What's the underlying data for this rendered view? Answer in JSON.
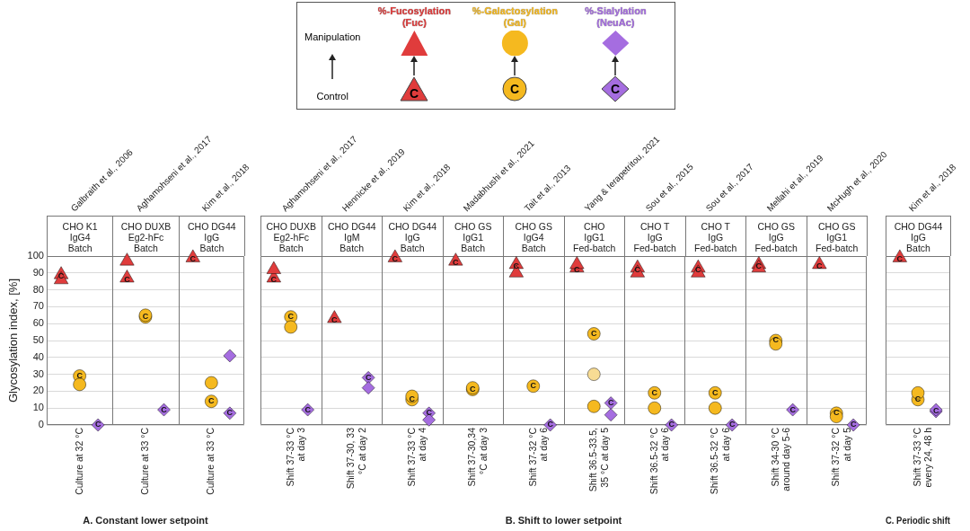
{
  "chart_data": [
    {
      "type": "scatter",
      "xlabel": "A. Constant lower setpoint",
      "ylabel": "Glycosylation index, [%]",
      "categories": [
        "Culture at 32 °C",
        "Culture at 33 °C",
        "Culture at 33 °C"
      ],
      "ylim": [
        0,
        100
      ],
      "yticks": [
        0,
        10,
        20,
        30,
        40,
        50,
        60,
        70,
        80,
        90,
        100
      ],
      "grid": "y",
      "annotations": [
        "Galbraith et al., 2006",
        "Aghamohseni et al., 2017",
        "Kim et al., 2018",
        "CHO K1\nIgG4\nBatch",
        "CHO DUXB\nEg2-hFc\nBatch",
        "CHO DG44\nIgG\nBatch"
      ],
      "series": [
        {
          "color": "#e03c3c",
          "marker": "triangle",
          "values": [
            86,
            97,
            null
          ]
        },
        {
          "color": "#e03c3c",
          "marker": "triangle",
          "values": [
            89,
            87,
            99
          ],
          "value_labels": [
            "C",
            "C",
            "C"
          ]
        },
        {
          "color": "#f5b91f",
          "marker": "circle",
          "values": [
            24,
            65,
            25
          ]
        },
        {
          "color": "#f5b91f",
          "marker": "circle",
          "values": [
            29,
            64,
            14
          ],
          "value_labels": [
            "C",
            "C",
            "C"
          ]
        },
        {
          "color": "#a56de0",
          "marker": "diamond",
          "values": [
            null,
            null,
            41
          ]
        },
        {
          "color": "#a56de0",
          "marker": "diamond",
          "values": [
            0,
            9,
            7
          ],
          "value_labels": [
            "C",
            "C",
            "C"
          ]
        }
      ]
    },
    {
      "type": "scatter",
      "xlabel": "B. Shift to lower setpoint",
      "categories": [
        "Shift 37-33 °C at day 3",
        "Shift 37-30, 33 °C at day 2",
        "Shift 37-33 °C at day 4",
        "Shift 37-30,34 °C at day 3",
        "Shift 37-32 °C at day 6",
        "Shift 36.5-33.5, 35 °C at day 5",
        "Shift 36.5-32 °C at day 6",
        "Shift 36.5-32 °C at day 6",
        "Shift 34-30 °C around day 5-6",
        "Shift 37-32 °C at day 5"
      ],
      "ylim": [
        0,
        100
      ],
      "yticks": [
        0,
        10,
        20,
        30,
        40,
        50,
        60,
        70,
        80,
        90,
        100
      ],
      "grid": "y",
      "tick_labels": "x",
      "legend": "top",
      "annotations": [
        "Aghamohseni et al., 2017",
        "Hennicke et al., 2019",
        "Kim et al., 2018",
        "Madabhushi et al., 2021",
        "Tait et al., 2013",
        "Yang & Ierapetritou, 2021",
        "Sou et al., 2015",
        "Sou et al., 2017",
        "Mellahi et al., 2019",
        "McHugh et al., 2020",
        "CHO DUXB\nEg2-hFc\nBatch",
        "CHO DG44\nIgM\nBatch",
        "CHO DG44\nIgG\nBatch",
        "CHO GS\nIgG1\nBatch",
        "CHO GS\nIgG4\nBatch",
        "CHO\nIgG1\nFed-batch",
        "CHO T\nIgG\nFed-batch",
        "CHO T\nIgG\nFed-batch",
        "CHO GS\nIgG\nFed-batch",
        "CHO GS\nIgG1\nFed-batch",
        "Manipulation",
        "Control"
      ],
      "series": [
        {
          "name": "%-Fucosylation (Fuc)",
          "color": "#e03c3c",
          "marker": "triangle",
          "values": [
            92,
            null,
            null,
            null,
            90,
            95,
            90,
            90,
            93,
            null
          ]
        },
        {
          "color": "#e03c3c",
          "marker": "triangle",
          "values": [
            87,
            63,
            99,
            97,
            95,
            93,
            93,
            93,
            95,
            95
          ],
          "value_labels": [
            "C",
            "C",
            "C",
            "C",
            "C",
            "C",
            "C",
            "C",
            "C",
            "C"
          ]
        },
        {
          "name": "%-Galactosylation (Gal)",
          "color": "#f5b91f",
          "marker": "circle",
          "values": [
            58,
            null,
            17,
            22,
            null,
            11,
            10,
            10,
            48,
            5
          ]
        },
        {
          "color": "#f5b91f",
          "marker": "circle",
          "values": [
            64,
            null,
            15,
            21,
            23,
            54,
            19,
            19,
            50,
            7
          ],
          "value_labels": [
            "C",
            null,
            "C",
            "C",
            "C",
            "C",
            "C",
            "C",
            "C",
            "C"
          ]
        },
        {
          "color": "#f8dc94",
          "marker": "circle",
          "values": [
            null,
            null,
            null,
            null,
            null,
            30,
            null,
            null,
            null,
            null
          ]
        },
        {
          "name": "%-Sialylation (NeuAc)",
          "color": "#a56de0",
          "marker": "diamond",
          "values": [
            null,
            22,
            3,
            null,
            null,
            6,
            null,
            null,
            null,
            null
          ]
        },
        {
          "color": "#a56de0",
          "marker": "diamond",
          "values": [
            9,
            28,
            7,
            null,
            0,
            13,
            0,
            0,
            9,
            0
          ],
          "value_labels": [
            "C",
            "C",
            "C",
            null,
            "C",
            "C",
            "C",
            "C",
            "C",
            "C"
          ]
        }
      ]
    },
    {
      "type": "scatter",
      "xlabel": "C. Periodic shift",
      "categories": [
        "Shift 37-33 °C every 24, 48 h"
      ],
      "ylim": [
        0,
        100
      ],
      "yticks": [
        0,
        10,
        20,
        30,
        40,
        50,
        60,
        70,
        80,
        90,
        100
      ],
      "grid": "y",
      "tick_labels": "x",
      "annotations": [
        "Kim et al., 2018",
        "CHO DG44\nIgG\nBatch"
      ],
      "series": [
        {
          "color": "#e03c3c",
          "marker": "triangle",
          "values": [
            99
          ],
          "value_labels": [
            "C"
          ]
        },
        {
          "color": "#f5b91f",
          "marker": "circle",
          "values": [
            19
          ]
        },
        {
          "color": "#f5b91f",
          "marker": "circle",
          "values": [
            15
          ],
          "value_labels": [
            "C"
          ]
        },
        {
          "color": "#a56de0",
          "marker": "diamond",
          "values": [
            9
          ]
        },
        {
          "color": "#a56de0",
          "marker": "diamond",
          "values": [
            8
          ],
          "value_labels": [
            "C"
          ]
        }
      ]
    }
  ]
}
